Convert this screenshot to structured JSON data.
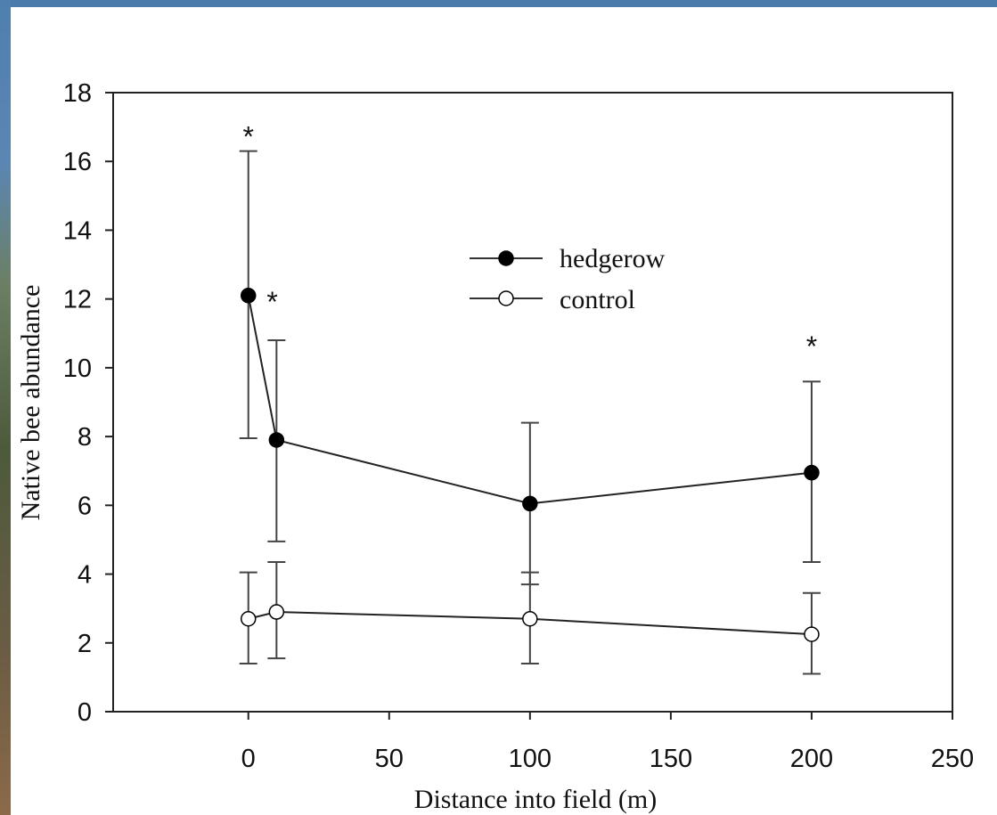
{
  "chart_data": {
    "type": "line",
    "xlabel": "Distance into field (m)",
    "ylabel": "Native bee abundance",
    "xlim": [
      -48,
      250
    ],
    "ylim": [
      0,
      18
    ],
    "x_ticks": [
      0,
      50,
      100,
      150,
      200,
      250
    ],
    "y_ticks": [
      0,
      2,
      4,
      6,
      8,
      10,
      12,
      14,
      16,
      18
    ],
    "x_tick_labels": [
      "0",
      "50",
      "100",
      "150",
      "200",
      "250"
    ],
    "y_tick_labels": [
      "0",
      "2",
      "4",
      "6",
      "8",
      "10",
      "12",
      "14",
      "16",
      "18"
    ],
    "legend_position": "upper-center",
    "grid": false,
    "series": [
      {
        "name": "hedgerow",
        "marker": "filled-circle",
        "color": "#000000",
        "x": [
          0,
          10,
          100,
          200
        ],
        "y": [
          12.1,
          7.9,
          6.05,
          6.95
        ],
        "err_low": [
          7.95,
          4.95,
          3.7,
          4.35
        ],
        "err_high": [
          16.3,
          10.8,
          8.4,
          9.6
        ]
      },
      {
        "name": "control",
        "marker": "open-circle",
        "color": "#000000",
        "x": [
          0,
          10,
          100,
          200
        ],
        "y": [
          2.7,
          2.9,
          2.7,
          2.25
        ],
        "err_low": [
          1.4,
          1.55,
          1.4,
          1.1
        ],
        "err_high": [
          4.05,
          4.35,
          4.05,
          3.45
        ]
      }
    ],
    "annotations": [
      {
        "text": "*",
        "x": 0,
        "y": 17.0
      },
      {
        "text": "*",
        "x": 8.5,
        "y": 12.2
      },
      {
        "text": "*",
        "x": 200,
        "y": 10.9
      }
    ]
  }
}
